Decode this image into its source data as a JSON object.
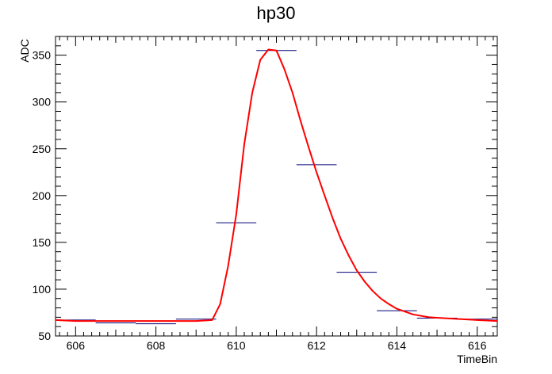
{
  "chart_data": {
    "type": "line",
    "title": "hp30",
    "xlabel": "TimeBin",
    "ylabel": "ADC",
    "xlim": [
      605.5,
      616.5
    ],
    "ylim": [
      50,
      370
    ],
    "grid": false,
    "x_ticks": [
      606,
      608,
      610,
      612,
      614,
      616
    ],
    "y_ticks": [
      50,
      100,
      150,
      200,
      250,
      300,
      350
    ],
    "histogram_bins": {
      "x": [
        606,
        607,
        608,
        609,
        610,
        611,
        612,
        613,
        614,
        615,
        616
      ],
      "values": [
        67,
        64,
        63,
        68,
        171,
        355,
        233,
        118,
        77,
        69,
        68
      ],
      "color": "#00007a"
    },
    "fit_curve": {
      "x": [
        605.5,
        606,
        607,
        608,
        609,
        609.4,
        609.6,
        609.8,
        610,
        610.2,
        610.4,
        610.6,
        610.8,
        611,
        611.2,
        611.4,
        611.6,
        611.8,
        612,
        612.2,
        612.4,
        612.6,
        612.8,
        613,
        613.2,
        613.4,
        613.6,
        613.8,
        614,
        614.4,
        614.8,
        615.2,
        615.6,
        616,
        616.5
      ],
      "y": [
        67,
        66,
        66,
        66,
        66,
        67,
        84,
        125,
        180,
        255,
        310,
        345,
        356,
        355,
        335,
        310,
        280,
        252,
        225,
        200,
        176,
        154,
        136,
        120,
        108,
        98,
        90,
        84,
        79,
        73,
        70,
        69,
        68,
        67,
        66
      ],
      "color": "#ff0000"
    }
  }
}
